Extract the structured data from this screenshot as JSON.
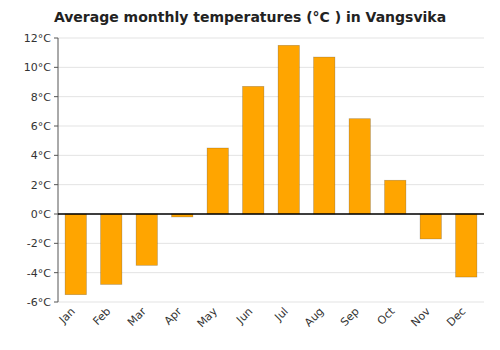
{
  "chart_data": {
    "type": "bar",
    "title": "Average monthly temperatures (°C ) in Vangsvika",
    "categories": [
      "Jan",
      "Feb",
      "Mar",
      "Apr",
      "May",
      "Jun",
      "Jul",
      "Aug",
      "Sep",
      "Oct",
      "Nov",
      "Dec"
    ],
    "values": [
      -5.5,
      -4.8,
      -3.5,
      -0.2,
      4.5,
      8.7,
      11.5,
      10.7,
      6.5,
      2.3,
      -1.7,
      -4.3
    ],
    "color": "#FFA500",
    "ylim": [
      -6,
      12
    ],
    "yticks": [
      {
        "value": -6,
        "label": "-6°C"
      },
      {
        "value": -4,
        "label": "-4°C"
      },
      {
        "value": -2,
        "label": "-2°C"
      },
      {
        "value": 0,
        "label": "0°C"
      },
      {
        "value": 2,
        "label": "2°C"
      },
      {
        "value": 4,
        "label": "4°C"
      },
      {
        "value": 6,
        "label": "6°C"
      },
      {
        "value": 8,
        "label": "8°C"
      },
      {
        "value": 10,
        "label": "10°C"
      },
      {
        "value": 12,
        "label": "12°C"
      }
    ],
    "grid": true
  }
}
